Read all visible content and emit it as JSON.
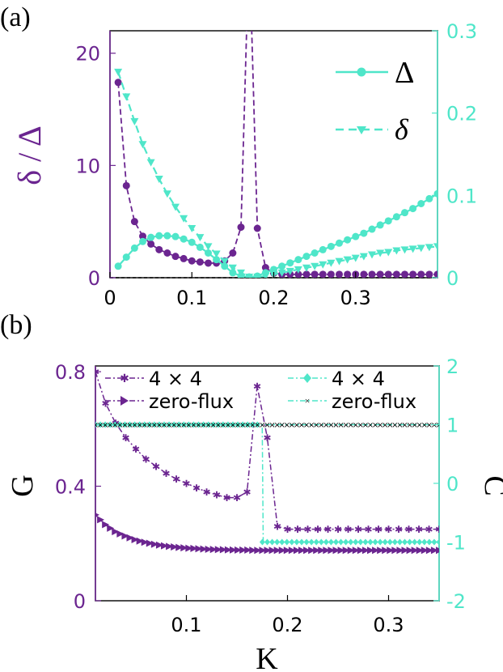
{
  "colors": {
    "purple": "#6b2590",
    "cyan": "#4fe6c9",
    "black": "#000000"
  },
  "chart_data": [
    {
      "panel_label": "(a)",
      "type": "line",
      "ylabel_left": "δ / Δ",
      "xlim": [
        0,
        0.4
      ],
      "ylim_left": [
        0,
        22
      ],
      "ylim_right": [
        0,
        0.3
      ],
      "xticks": [
        "0",
        "0.1",
        "0.2",
        "0.3"
      ],
      "yticks_left": [
        "0",
        "10",
        "20"
      ],
      "yticks_right": [
        "0",
        "0.1",
        "0.2",
        "0.3"
      ],
      "legend": [
        "Δ",
        "δ"
      ],
      "series": [
        {
          "name": "δ / Δ",
          "axis": "left",
          "style": "dashed-dot-marker",
          "x": [
            0.01,
            0.02,
            0.03,
            0.04,
            0.05,
            0.06,
            0.07,
            0.08,
            0.09,
            0.1,
            0.11,
            0.12,
            0.13,
            0.14,
            0.15,
            0.16,
            0.17,
            0.18,
            0.19,
            0.2,
            0.21,
            0.22,
            0.23,
            0.24,
            0.25,
            0.26,
            0.27,
            0.28,
            0.29,
            0.3,
            0.31,
            0.32,
            0.33,
            0.34,
            0.35,
            0.36,
            0.37,
            0.38,
            0.39,
            0.4
          ],
          "y": [
            17.4,
            8.2,
            5.0,
            3.7,
            3.0,
            2.5,
            2.2,
            1.9,
            1.7,
            1.5,
            1.4,
            1.3,
            1.3,
            1.5,
            2.2,
            4.5,
            30,
            4.4,
            0.9,
            0.4,
            0.3,
            0.3,
            0.3,
            0.3,
            0.3,
            0.3,
            0.3,
            0.3,
            0.3,
            0.3,
            0.3,
            0.3,
            0.3,
            0.3,
            0.3,
            0.3,
            0.3,
            0.3,
            0.3,
            0.3
          ]
        },
        {
          "name": "Δ",
          "axis": "right",
          "style": "solid-circle",
          "x": [
            0.01,
            0.02,
            0.03,
            0.04,
            0.05,
            0.06,
            0.07,
            0.08,
            0.09,
            0.1,
            0.11,
            0.12,
            0.13,
            0.14,
            0.15,
            0.16,
            0.17,
            0.18,
            0.19,
            0.2,
            0.21,
            0.22,
            0.23,
            0.24,
            0.25,
            0.26,
            0.27,
            0.28,
            0.29,
            0.3,
            0.31,
            0.32,
            0.33,
            0.34,
            0.35,
            0.36,
            0.37,
            0.38,
            0.39,
            0.4
          ],
          "y": [
            0.014,
            0.025,
            0.036,
            0.044,
            0.049,
            0.051,
            0.051,
            0.05,
            0.047,
            0.043,
            0.037,
            0.03,
            0.022,
            0.014,
            0.006,
            0.002,
            0.001,
            0.002,
            0.006,
            0.01,
            0.014,
            0.018,
            0.022,
            0.026,
            0.03,
            0.034,
            0.038,
            0.042,
            0.046,
            0.05,
            0.054,
            0.059,
            0.064,
            0.069,
            0.074,
            0.079,
            0.084,
            0.09,
            0.096,
            0.102
          ]
        },
        {
          "name": "δ",
          "axis": "right",
          "style": "dashed-triangle",
          "x": [
            0.01,
            0.02,
            0.03,
            0.04,
            0.05,
            0.06,
            0.07,
            0.08,
            0.09,
            0.1,
            0.11,
            0.12,
            0.13,
            0.14,
            0.15,
            0.16,
            0.17,
            0.18,
            0.19,
            0.2,
            0.21,
            0.22,
            0.23,
            0.24,
            0.25,
            0.26,
            0.27,
            0.28,
            0.29,
            0.3,
            0.31,
            0.32,
            0.33,
            0.34,
            0.35,
            0.36,
            0.37,
            0.38,
            0.39,
            0.4
          ],
          "y": [
            0.25,
            0.22,
            0.19,
            0.162,
            0.14,
            0.12,
            0.102,
            0.086,
            0.072,
            0.06,
            0.049,
            0.038,
            0.029,
            0.02,
            0.012,
            0.006,
            0.001,
            0.001,
            0.002,
            0.004,
            0.006,
            0.008,
            0.01,
            0.012,
            0.014,
            0.016,
            0.018,
            0.02,
            0.022,
            0.024,
            0.026,
            0.028,
            0.03,
            0.031,
            0.033,
            0.034,
            0.035,
            0.036,
            0.037,
            0.038
          ]
        }
      ]
    },
    {
      "panel_label": "(b)",
      "type": "line",
      "xlabel": "K",
      "ylabel_left": "G",
      "ylabel_right": "C",
      "xlim": [
        0.01,
        0.35
      ],
      "ylim_left": [
        0,
        0.82
      ],
      "ylim_right": [
        -2,
        2
      ],
      "xticks": [
        "0.1",
        "0.2",
        "0.3"
      ],
      "yticks_left": [
        "0",
        "0.4",
        "0.8"
      ],
      "yticks_right": [
        "-2",
        "-1",
        "0",
        "1",
        "2"
      ],
      "legend_left": [
        "4 × 4",
        "zero-flux"
      ],
      "legend_right": [
        "4 × 4",
        "zero-flux"
      ],
      "series": [
        {
          "name": "4 × 4",
          "axis": "left",
          "style": "dashdot-star",
          "x": [
            0.01,
            0.02,
            0.03,
            0.04,
            0.05,
            0.06,
            0.07,
            0.08,
            0.09,
            0.1,
            0.11,
            0.12,
            0.13,
            0.14,
            0.15,
            0.16,
            0.17,
            0.18,
            0.19,
            0.2,
            0.21,
            0.22,
            0.23,
            0.24,
            0.25,
            0.26,
            0.27,
            0.28,
            0.29,
            0.3,
            0.31,
            0.32,
            0.33,
            0.34,
            0.35
          ],
          "y": [
            0.8,
            0.69,
            0.62,
            0.57,
            0.53,
            0.495,
            0.47,
            0.445,
            0.425,
            0.41,
            0.395,
            0.38,
            0.37,
            0.36,
            0.36,
            0.38,
            0.75,
            0.57,
            0.26,
            0.25,
            0.25,
            0.25,
            0.25,
            0.25,
            0.25,
            0.25,
            0.25,
            0.25,
            0.25,
            0.25,
            0.25,
            0.25,
            0.25,
            0.25,
            0.25
          ]
        },
        {
          "name": "zero-flux",
          "axis": "left",
          "style": "dashdot-triangle-right",
          "x": [
            0.01,
            0.02,
            0.03,
            0.04,
            0.05,
            0.06,
            0.07,
            0.08,
            0.09,
            0.1,
            0.11,
            0.12,
            0.13,
            0.14,
            0.15,
            0.16,
            0.17,
            0.18,
            0.19,
            0.2,
            0.21,
            0.22,
            0.23,
            0.24,
            0.25,
            0.26,
            0.27,
            0.28,
            0.29,
            0.3,
            0.31,
            0.32,
            0.33,
            0.34,
            0.35
          ],
          "y": [
            0.3,
            0.265,
            0.24,
            0.225,
            0.212,
            0.203,
            0.196,
            0.191,
            0.187,
            0.184,
            0.182,
            0.18,
            0.179,
            0.178,
            0.177,
            0.177,
            0.176,
            0.176,
            0.176,
            0.176,
            0.176,
            0.176,
            0.176,
            0.176,
            0.176,
            0.176,
            0.176,
            0.176,
            0.176,
            0.176,
            0.176,
            0.176,
            0.176,
            0.176,
            0.176
          ]
        },
        {
          "name": "4 × 4",
          "axis": "right",
          "style": "dashdot-diamond",
          "x": [
            0.01,
            0.175,
            0.176,
            0.35
          ],
          "y": [
            1,
            1,
            -1,
            -1
          ]
        },
        {
          "name": "zero-flux",
          "axis": "right",
          "style": "dashdot-x",
          "x": [
            0.01,
            0.35
          ],
          "y": [
            1,
            1
          ]
        }
      ]
    }
  ]
}
